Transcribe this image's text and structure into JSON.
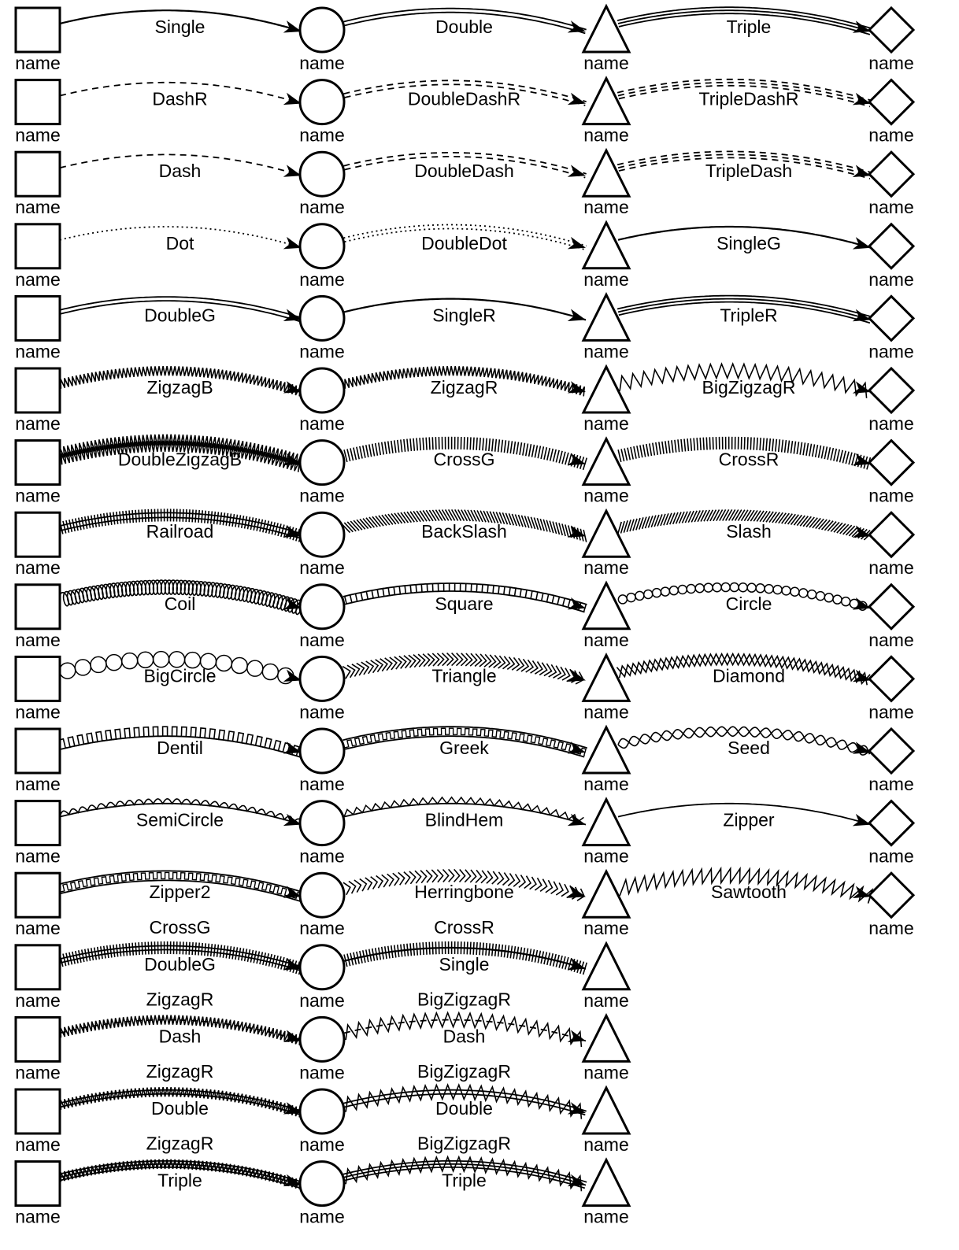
{
  "node_label": "name",
  "node_shapes": [
    "square",
    "circle",
    "triangle",
    "diamond"
  ],
  "colors": {
    "stroke": "#000000",
    "background": "#ffffff"
  },
  "rows": [
    {
      "edges": [
        {
          "label": "Single"
        },
        {
          "label": "Double"
        },
        {
          "label": "Triple"
        }
      ]
    },
    {
      "edges": [
        {
          "label": "DashR"
        },
        {
          "label": "DoubleDashR"
        },
        {
          "label": "TripleDashR"
        }
      ]
    },
    {
      "edges": [
        {
          "label": "Dash"
        },
        {
          "label": "DoubleDash"
        },
        {
          "label": "TripleDash"
        }
      ]
    },
    {
      "edges": [
        {
          "label": "Dot"
        },
        {
          "label": "DoubleDot"
        },
        {
          "label": "SingleG"
        }
      ]
    },
    {
      "edges": [
        {
          "label": "DoubleG"
        },
        {
          "label": "SingleR"
        },
        {
          "label": "TripleR"
        }
      ]
    },
    {
      "edges": [
        {
          "label": "ZigzagB"
        },
        {
          "label": "ZigzagR"
        },
        {
          "label": "BigZigzagR"
        }
      ]
    },
    {
      "edges": [
        {
          "label": "DoubleZigzagB"
        },
        {
          "label": "CrossG"
        },
        {
          "label": "CrossR"
        }
      ]
    },
    {
      "edges": [
        {
          "label": "Railroad"
        },
        {
          "label": "BackSlash"
        },
        {
          "label": "Slash"
        }
      ]
    },
    {
      "edges": [
        {
          "label": "Coil"
        },
        {
          "label": "Square"
        },
        {
          "label": "Circle"
        }
      ]
    },
    {
      "edges": [
        {
          "label": "BigCircle"
        },
        {
          "label": "Triangle"
        },
        {
          "label": "Diamond"
        }
      ]
    },
    {
      "edges": [
        {
          "label": "Dentil"
        },
        {
          "label": "Greek"
        },
        {
          "label": "Seed"
        }
      ]
    },
    {
      "edges": [
        {
          "label": "SemiCircle"
        },
        {
          "label": "BlindHem"
        },
        {
          "label": "Zipper"
        }
      ]
    },
    {
      "edges": [
        {
          "label": "Zipper2"
        },
        {
          "label": "Herringbone"
        },
        {
          "label": "Sawtooth"
        }
      ]
    },
    {
      "edges": [
        {
          "top": "CrossG",
          "label": "DoubleG"
        },
        {
          "top": "CrossR",
          "label": "Single"
        }
      ]
    },
    {
      "edges": [
        {
          "top": "ZigzagR",
          "label": "Dash"
        },
        {
          "top": "BigZigzagR",
          "label": "Dash"
        }
      ]
    },
    {
      "edges": [
        {
          "top": "ZigzagR",
          "label": "Double"
        },
        {
          "top": "BigZigzagR",
          "label": "Double"
        }
      ]
    },
    {
      "edges": [
        {
          "top": "ZigzagR",
          "label": "Triple"
        },
        {
          "top": "BigZigzagR",
          "label": "Triple"
        }
      ]
    }
  ]
}
